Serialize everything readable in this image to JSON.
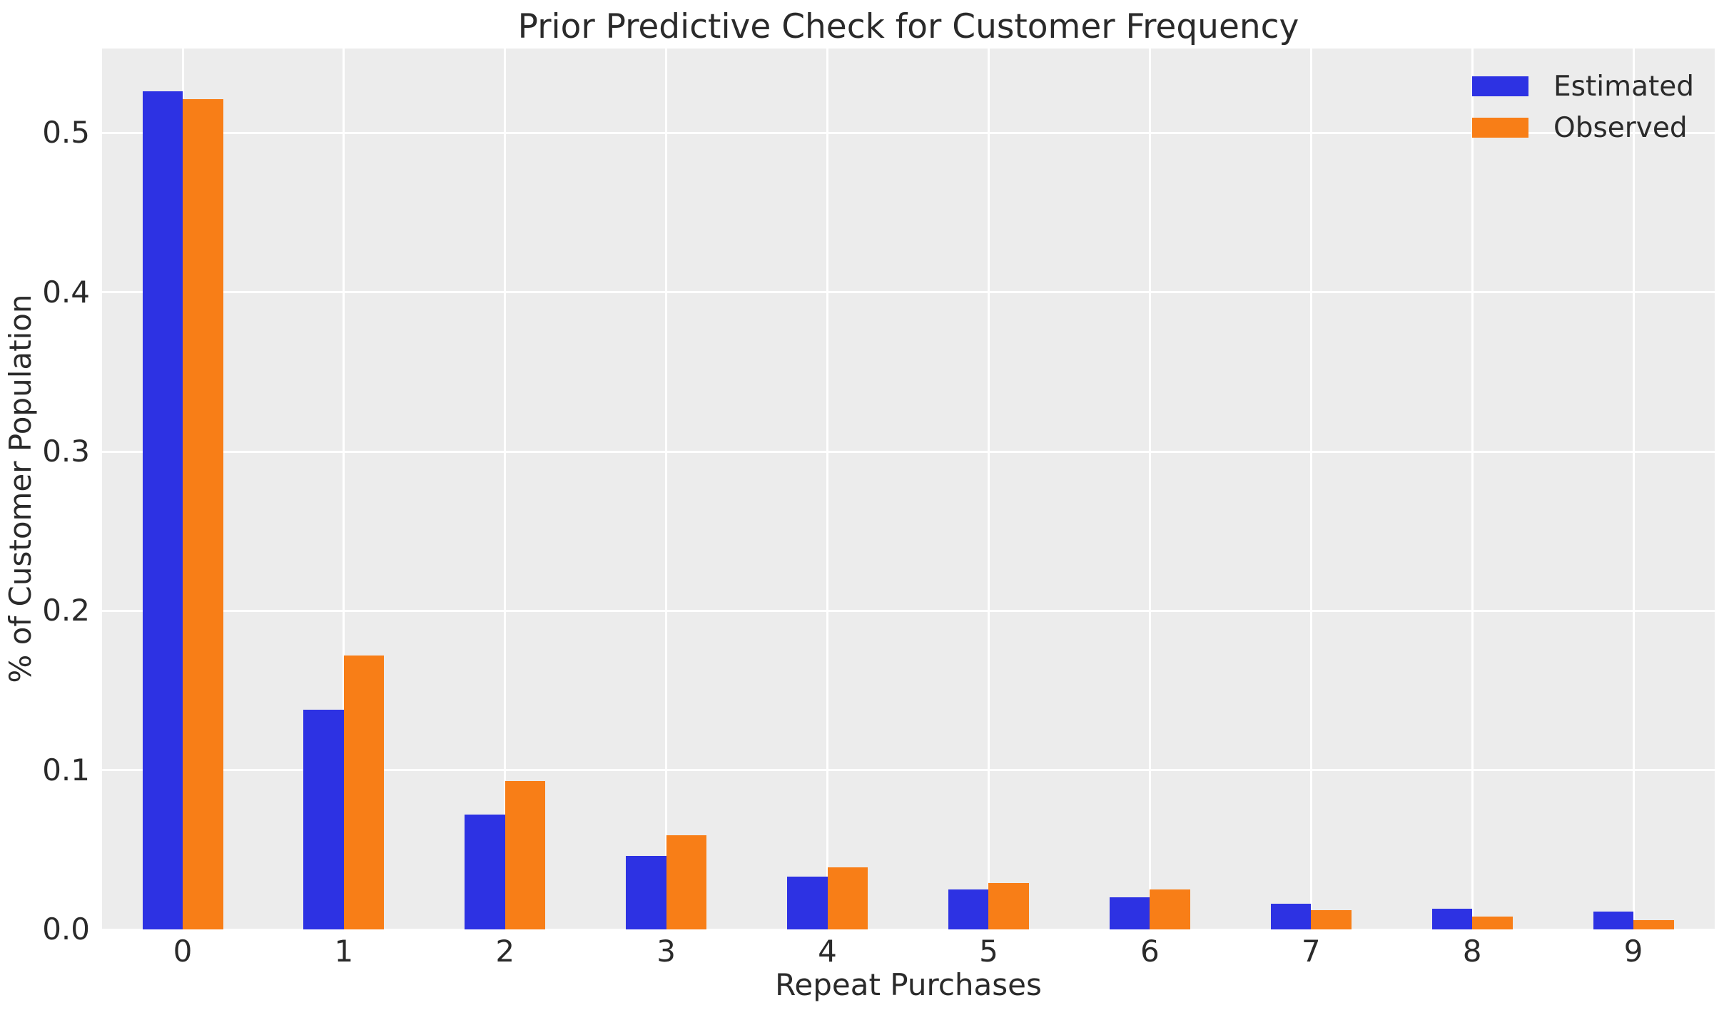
{
  "chart_data": {
    "type": "bar",
    "title": "Prior Predictive Check for Customer Frequency",
    "xlabel": "Repeat Purchases",
    "ylabel": "% of Customer Population",
    "categories": [
      "0",
      "1",
      "2",
      "3",
      "4",
      "5",
      "6",
      "7",
      "8",
      "9"
    ],
    "series": [
      {
        "name": "Estimated",
        "color": "#2d32e3",
        "values": [
          0.526,
          0.138,
          0.072,
          0.046,
          0.033,
          0.025,
          0.02,
          0.016,
          0.013,
          0.011
        ]
      },
      {
        "name": "Observed",
        "color": "#f87e17",
        "values": [
          0.521,
          0.172,
          0.093,
          0.059,
          0.039,
          0.029,
          0.025,
          0.012,
          0.008,
          0.006
        ]
      }
    ],
    "ylim": [
      0,
      0.553
    ],
    "yticks": [
      "0.0",
      "0.1",
      "0.2",
      "0.3",
      "0.4",
      "0.5"
    ],
    "grid": true,
    "legend_position": "upper right",
    "colors": {
      "figure_background": "#ffffff",
      "plot_background": "#ececec",
      "gridline": "#ffffff",
      "text": "#2a2a2a"
    }
  }
}
